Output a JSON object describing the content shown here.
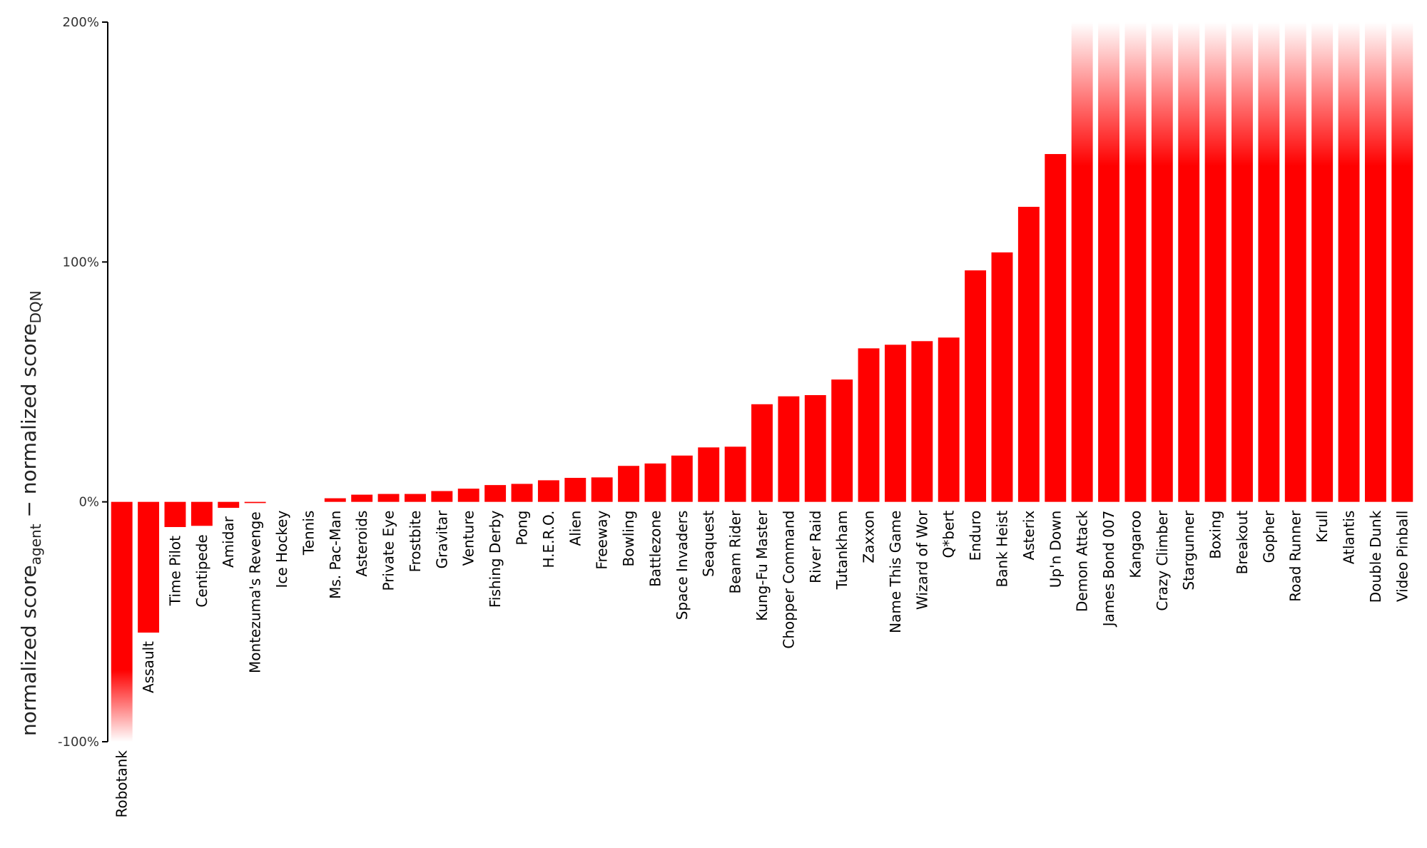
{
  "chart_data": {
    "type": "bar",
    "ylabel": {
      "prefix": "normalized score",
      "sub1": "agent",
      "middle": " − normalized score",
      "sub2": "DQN"
    },
    "yticks": [
      {
        "value": -100,
        "label": "-100%"
      },
      {
        "value": 0,
        "label": "0%"
      },
      {
        "value": 100,
        "label": "100%"
      },
      {
        "value": 200,
        "label": "200%"
      }
    ],
    "ylim": [
      -100,
      200
    ],
    "bar_color": "#ff0000",
    "clipped_fade": true,
    "categories": [
      "Robotank",
      "Assault",
      "Time Pilot",
      "Centipede",
      "Amidar",
      "Montezuma's Revenge",
      "Ice Hockey",
      "Tennis",
      "Ms. Pac-Man",
      "Asteroids",
      "Private Eye",
      "Frostbite",
      "Gravitar",
      "Venture",
      "Fishing Derby",
      "Pong",
      "H.E.R.O.",
      "Alien",
      "Freeway",
      "Bowling",
      "Battlezone",
      "Space Invaders",
      "Seaquest",
      "Beam Rider",
      "Kung-Fu Master",
      "Chopper Command",
      "River Raid",
      "Tutankham",
      "Zaxxon",
      "Name This Game",
      "Wizard of Wor",
      "Q*bert",
      "Enduro",
      "Bank Heist",
      "Asterix",
      "Up'n Down",
      "Demon Attack",
      "James Bond 007",
      "Kangaroo",
      "Crazy Climber",
      "Stargunner",
      "Boxing",
      "Breakout",
      "Gopher",
      "Road Runner",
      "Krull",
      "Atlantis",
      "Double Dunk",
      "Video Pinball"
    ],
    "values": [
      -100,
      -54.5,
      -10.5,
      -10,
      -2.5,
      -0.5,
      0,
      0,
      1.5,
      3,
      3.3,
      3.3,
      4.5,
      5.5,
      7,
      7.5,
      9,
      10,
      10.2,
      15,
      16,
      19.3,
      22.7,
      23,
      40.7,
      44,
      44.5,
      51,
      64,
      65.5,
      67,
      68.5,
      96.5,
      104,
      123,
      145,
      200,
      200,
      200,
      200,
      200,
      200,
      200,
      200,
      200,
      200,
      200,
      200,
      200
    ]
  }
}
